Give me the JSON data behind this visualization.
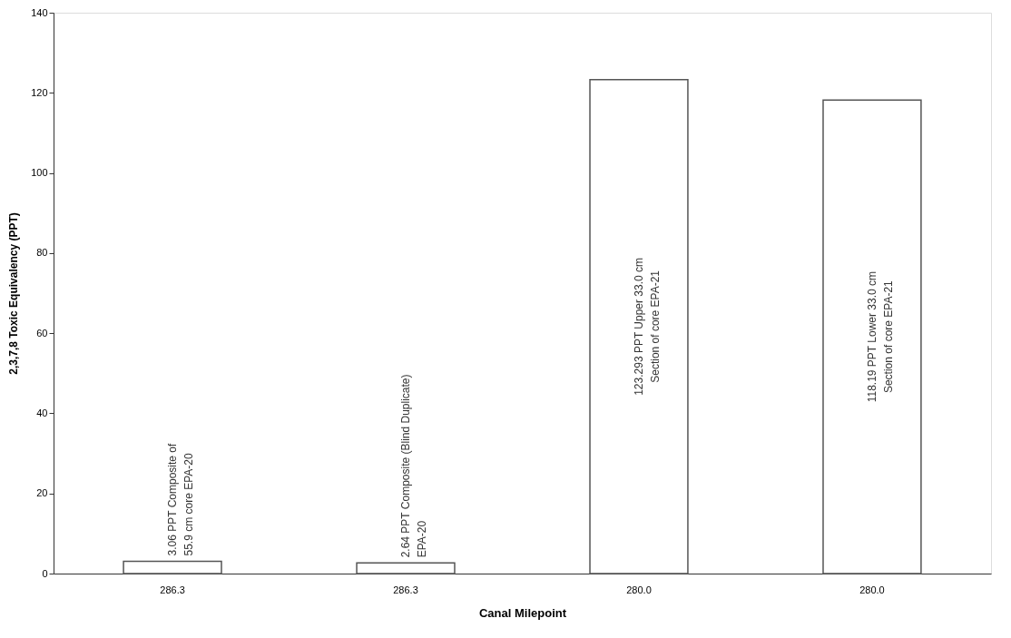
{
  "chart_data": {
    "type": "bar",
    "xlabel": "Canal Milepoint",
    "ylabel": "2,3,7,8 Toxic Equivalency (PPT)",
    "categories": [
      "286.3",
      "286.3",
      "280.0",
      "280.0"
    ],
    "values": [
      3.06,
      2.64,
      123.293,
      118.19
    ],
    "color": "#ffffff",
    "value_labels": [
      "3.06 PPT Composite of\n55.9 cm core EPA-20",
      "2.64 PPT Composite (Blind Duplicate)\nEPA-20",
      "123.293 PPT Upper  33.0 cm\nSection of core  EPA-21",
      "118.19 PPT Lower 33.0 cm\nSection of core EPA-21"
    ],
    "ylim": [
      0,
      140
    ],
    "yticks": [
      0,
      20,
      40,
      60,
      80,
      100,
      120,
      140
    ],
    "grid": false
  }
}
